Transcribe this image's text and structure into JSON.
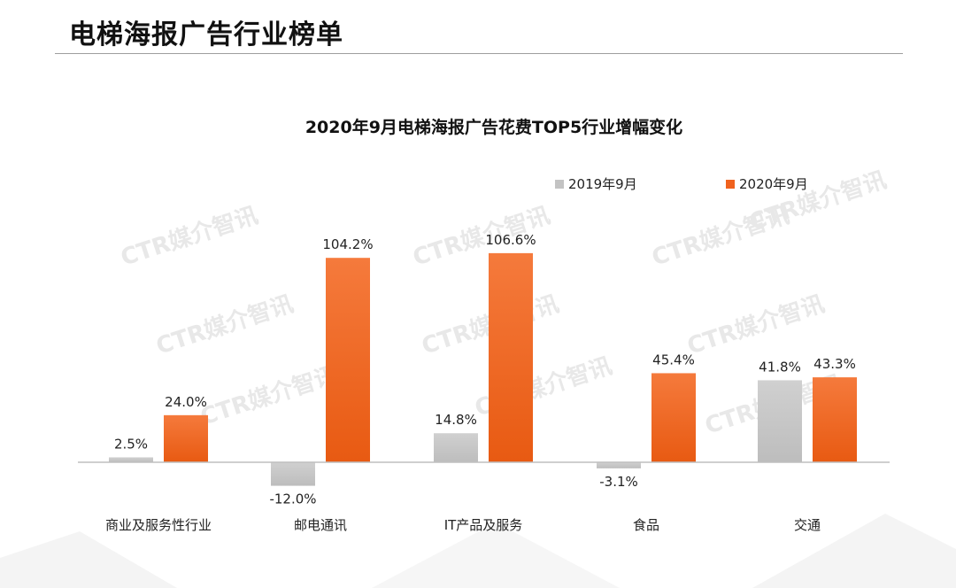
{
  "page": {
    "title": "电梯海报广告行业榜单"
  },
  "chart_data": {
    "type": "bar",
    "title": "2020年9月电梯海报广告花费TOP5行业增幅变化",
    "categories": [
      "商业及服务性行业",
      "邮电通讯",
      "IT产品及服务",
      "食品",
      "交通"
    ],
    "series": [
      {
        "name": "2019年9月",
        "values": [
          2.5,
          -12.0,
          14.8,
          -3.1,
          41.8
        ],
        "labels": [
          "2.5%",
          "-12.0%",
          "14.8%",
          "-3.1%",
          "41.8%"
        ]
      },
      {
        "name": "2020年9月",
        "values": [
          24.0,
          104.2,
          106.6,
          45.4,
          43.3
        ],
        "labels": [
          "24.0%",
          "104.2%",
          "106.6%",
          "45.4%",
          "43.3%"
        ]
      }
    ],
    "ylim": [
      -15,
      110
    ],
    "grid": false,
    "legend_position": "top-right",
    "colors": {
      "2019": "#c3c3c3",
      "2020": "#f0621e",
      "axis": "#bfbfbf",
      "text": "#222222"
    },
    "watermark": "CTR媒介智讯"
  }
}
